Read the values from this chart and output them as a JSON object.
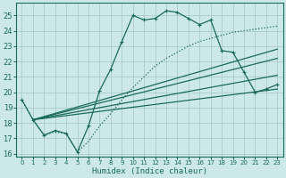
{
  "bg_color": "#cce8e8",
  "grid_color": "#aacccc",
  "line_color": "#1a6b5a",
  "xlabel": "Humidex (Indice chaleur)",
  "xlim": [
    -0.5,
    23.5
  ],
  "ylim": [
    15.8,
    25.8
  ],
  "yticks": [
    16,
    17,
    18,
    19,
    20,
    21,
    22,
    23,
    24,
    25
  ],
  "xticks": [
    0,
    1,
    2,
    3,
    4,
    5,
    6,
    7,
    8,
    9,
    10,
    11,
    12,
    13,
    14,
    15,
    16,
    17,
    18,
    19,
    20,
    21,
    22,
    23
  ],
  "curve1_x": [
    0,
    1,
    2,
    3,
    4,
    5,
    6,
    7,
    8,
    9,
    10,
    11,
    12,
    13,
    14,
    15,
    16,
    17,
    18,
    19,
    20,
    21,
    22,
    23
  ],
  "curve1_y": [
    19.5,
    18.2,
    17.2,
    17.5,
    17.3,
    16.1,
    17.8,
    20.1,
    21.5,
    23.3,
    25.0,
    24.7,
    24.8,
    25.3,
    25.2,
    24.8,
    24.4,
    24.7,
    22.7,
    22.6,
    21.3,
    20.0,
    20.2,
    20.5
  ],
  "curve2_x": [
    0,
    1,
    2,
    3,
    4,
    5,
    6,
    7,
    8,
    9,
    10,
    11,
    12,
    13,
    14,
    15,
    16,
    17,
    18,
    19,
    20,
    21,
    22,
    23
  ],
  "curve2_y": [
    19.5,
    18.2,
    17.2,
    17.4,
    17.3,
    16.1,
    16.8,
    17.8,
    18.6,
    19.5,
    20.3,
    21.0,
    21.7,
    22.2,
    22.6,
    23.0,
    23.3,
    23.5,
    23.7,
    23.9,
    24.0,
    24.1,
    24.2,
    24.3
  ],
  "line1_x": [
    1,
    23
  ],
  "line1_y": [
    18.2,
    20.2
  ],
  "line2_x": [
    1,
    23
  ],
  "line2_y": [
    18.2,
    21.1
  ],
  "line3_x": [
    1,
    23
  ],
  "line3_y": [
    18.2,
    22.2
  ],
  "line4_x": [
    1,
    23
  ],
  "line4_y": [
    18.2,
    22.8
  ]
}
